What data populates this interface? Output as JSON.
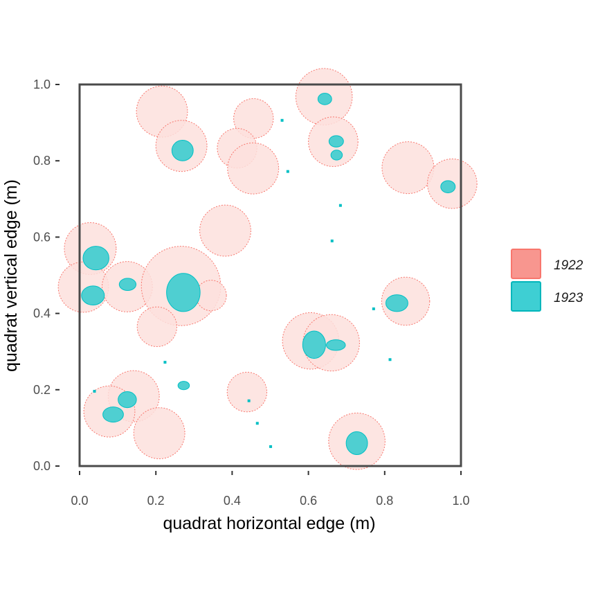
{
  "chart_data": {
    "type": "map",
    "xlabel": "quadrat horizontal edge (m)",
    "ylabel": "quadrat vertical edge (m)",
    "xlim": [
      0,
      1
    ],
    "ylim": [
      0,
      1
    ],
    "x_ticks": [
      "0.0",
      "0.2",
      "0.4",
      "0.6",
      "0.8",
      "1.0"
    ],
    "y_ticks": [
      "0.0",
      "0.2",
      "0.4",
      "0.6",
      "0.8",
      "1.0"
    ],
    "grid": false,
    "legend_position": "right",
    "colors": {
      "1922_fill": "#fde0dd",
      "1922_stroke": "#f8766d",
      "1923_fill": "#4fcfd1",
      "1923_stroke": "#00bfc4",
      "legend_1922": "#f8968f",
      "legend_1923": "#3ecfd3"
    },
    "legend": [
      {
        "label": "1922",
        "key": "1922"
      },
      {
        "label": "1923",
        "key": "1923"
      }
    ],
    "series": [
      {
        "name": "1922",
        "kind": "buffered polygons",
        "shapes": [
          {
            "cx": 0.216,
            "cy": 0.929,
            "r": 0.067
          },
          {
            "cx": 0.267,
            "cy": 0.839,
            "r": 0.067
          },
          {
            "cx": 0.456,
            "cy": 0.911,
            "r": 0.052
          },
          {
            "cx": 0.413,
            "cy": 0.833,
            "r": 0.052
          },
          {
            "cx": 0.455,
            "cy": 0.78,
            "r": 0.067
          },
          {
            "cx": 0.641,
            "cy": 0.968,
            "r": 0.074
          },
          {
            "cx": 0.665,
            "cy": 0.85,
            "r": 0.065
          },
          {
            "cx": 0.861,
            "cy": 0.782,
            "r": 0.068
          },
          {
            "cx": 0.977,
            "cy": 0.74,
            "r": 0.065
          },
          {
            "cx": 0.382,
            "cy": 0.617,
            "r": 0.067
          },
          {
            "cx": 0.028,
            "cy": 0.57,
            "r": 0.068
          },
          {
            "cx": 0.01,
            "cy": 0.469,
            "r": 0.066
          },
          {
            "cx": 0.125,
            "cy": 0.47,
            "r": 0.066
          },
          {
            "cx": 0.266,
            "cy": 0.472,
            "r": 0.104
          },
          {
            "cx": 0.345,
            "cy": 0.447,
            "r": 0.04
          },
          {
            "cx": 0.203,
            "cy": 0.365,
            "r": 0.052
          },
          {
            "cx": 0.606,
            "cy": 0.328,
            "r": 0.074
          },
          {
            "cx": 0.66,
            "cy": 0.323,
            "r": 0.074
          },
          {
            "cx": 0.855,
            "cy": 0.432,
            "r": 0.063
          },
          {
            "cx": 0.142,
            "cy": 0.183,
            "r": 0.067
          },
          {
            "cx": 0.078,
            "cy": 0.143,
            "r": 0.067
          },
          {
            "cx": 0.209,
            "cy": 0.086,
            "r": 0.067
          },
          {
            "cx": 0.439,
            "cy": 0.194,
            "r": 0.052
          },
          {
            "cx": 0.727,
            "cy": 0.065,
            "r": 0.074
          }
        ]
      },
      {
        "name": "1923",
        "kind": "polygons",
        "shapes": [
          {
            "cx": 0.643,
            "cy": 0.962,
            "rx": 0.018,
            "ry": 0.015
          },
          {
            "cx": 0.27,
            "cy": 0.827,
            "rx": 0.028,
            "ry": 0.027
          },
          {
            "cx": 0.673,
            "cy": 0.851,
            "rx": 0.019,
            "ry": 0.015
          },
          {
            "cx": 0.674,
            "cy": 0.815,
            "rx": 0.015,
            "ry": 0.013
          },
          {
            "cx": 0.966,
            "cy": 0.732,
            "rx": 0.019,
            "ry": 0.016
          },
          {
            "cx": 0.043,
            "cy": 0.545,
            "rx": 0.034,
            "ry": 0.031
          },
          {
            "cx": 0.035,
            "cy": 0.447,
            "rx": 0.03,
            "ry": 0.025
          },
          {
            "cx": 0.126,
            "cy": 0.476,
            "rx": 0.022,
            "ry": 0.016
          },
          {
            "cx": 0.272,
            "cy": 0.455,
            "rx": 0.044,
            "ry": 0.05
          },
          {
            "cx": 0.615,
            "cy": 0.318,
            "rx": 0.03,
            "ry": 0.036
          },
          {
            "cx": 0.672,
            "cy": 0.317,
            "rx": 0.025,
            "ry": 0.014
          },
          {
            "cx": 0.832,
            "cy": 0.427,
            "rx": 0.029,
            "ry": 0.022
          },
          {
            "cx": 0.273,
            "cy": 0.211,
            "rx": 0.015,
            "ry": 0.011
          },
          {
            "cx": 0.125,
            "cy": 0.174,
            "rx": 0.024,
            "ry": 0.021
          },
          {
            "cx": 0.088,
            "cy": 0.135,
            "rx": 0.027,
            "ry": 0.02
          },
          {
            "cx": 0.727,
            "cy": 0.06,
            "rx": 0.028,
            "ry": 0.03
          }
        ],
        "points": [
          {
            "x": 0.531,
            "y": 0.906
          },
          {
            "x": 0.546,
            "y": 0.772
          },
          {
            "x": 0.684,
            "y": 0.683
          },
          {
            "x": 0.662,
            "y": 0.59
          },
          {
            "x": 0.771,
            "y": 0.412
          },
          {
            "x": 0.814,
            "y": 0.279
          },
          {
            "x": 0.224,
            "y": 0.272
          },
          {
            "x": 0.039,
            "y": 0.196
          },
          {
            "x": 0.444,
            "y": 0.171
          },
          {
            "x": 0.466,
            "y": 0.112
          },
          {
            "x": 0.501,
            "y": 0.051
          }
        ]
      }
    ]
  }
}
